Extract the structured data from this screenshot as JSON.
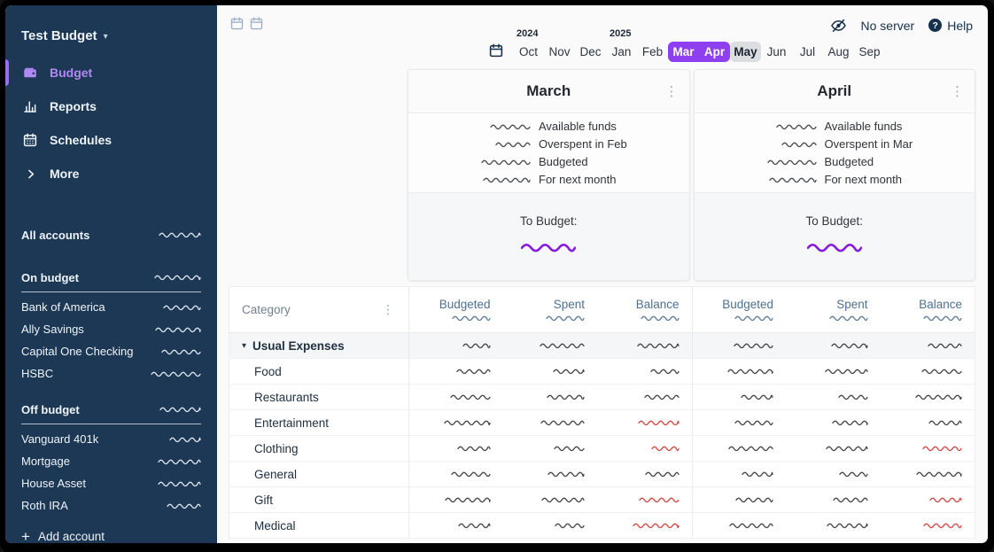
{
  "colors": {
    "sidebar_bg": "#1c3854",
    "sidebar_text": "#eef3f8",
    "main_bg": "#fafafa",
    "navy_text": "#15304c",
    "accent_purple": "#8e3ff0",
    "nav_active_purple": "#b289f4",
    "nav_indicator": "#9a6cf0",
    "to_budget_purple": "#861be0",
    "negative_red": "#d64541",
    "mask_dark": "#454545",
    "mask_light": "#dce5ee",
    "mask_slate": "#5e7b97",
    "header_slate": "#4e7092",
    "category_gray": "#70818f",
    "hover_gray": "#dcdddf",
    "group_bg": "#f4f6f7"
  },
  "sidebar": {
    "title": "Test Budget",
    "title_caret_icon": "chevron-down-icon",
    "nav": [
      {
        "label": "Budget",
        "icon": "wallet-icon",
        "active": true
      },
      {
        "label": "Reports",
        "icon": "bar-chart-icon",
        "active": false
      },
      {
        "label": "Schedules",
        "icon": "calendar-icon",
        "active": false
      },
      {
        "label": "More",
        "icon": "chevron-right-icon",
        "active": false
      }
    ],
    "all_accounts_label": "All accounts",
    "sections": [
      {
        "header": "On budget",
        "items": [
          "Bank of America",
          "Ally Savings",
          "Capital One Checking",
          "HSBC"
        ]
      },
      {
        "header": "Off budget",
        "items": [
          "Vanguard 401k",
          "Mortgage",
          "House Asset",
          "Roth IRA"
        ]
      }
    ],
    "add_account_label": "Add account",
    "values_masked": true
  },
  "topbar": {
    "privacy_icon": "eye-slash-icon",
    "server_status": "No server",
    "help_icon": "question-circle-icon",
    "help_label": "Help",
    "view_buttons": [
      "calendar-icon",
      "calendar-icon"
    ]
  },
  "month_nav": {
    "picker_icon": "calendar-icon",
    "months": [
      {
        "label": "Oct",
        "year_above": "2024",
        "state": "normal"
      },
      {
        "label": "Nov",
        "state": "normal"
      },
      {
        "label": "Dec",
        "state": "normal"
      },
      {
        "label": "Jan",
        "year_above": "2025",
        "state": "normal"
      },
      {
        "label": "Feb",
        "state": "normal"
      },
      {
        "label": "Mar",
        "state": "selected"
      },
      {
        "label": "Apr",
        "state": "selected"
      },
      {
        "label": "May",
        "state": "hover"
      },
      {
        "label": "Jun",
        "state": "normal"
      },
      {
        "label": "Jul",
        "state": "normal"
      },
      {
        "label": "Aug",
        "state": "normal"
      },
      {
        "label": "Sep",
        "state": "normal"
      }
    ]
  },
  "cards": [
    {
      "title": "March",
      "menu_icon": "kebab-icon",
      "summary_labels": [
        "Available funds",
        "Overspent in Feb",
        "Budgeted",
        "For next month"
      ],
      "to_budget_label": "To Budget:",
      "to_budget_masked": true
    },
    {
      "title": "April",
      "menu_icon": "kebab-icon",
      "summary_labels": [
        "Available funds",
        "Overspent in Mar",
        "Budgeted",
        "For next month"
      ],
      "to_budget_label": "To Budget:",
      "to_budget_masked": true
    }
  ],
  "table": {
    "category_header": "Category",
    "column_headers": [
      "Budgeted",
      "Spent",
      "Balance"
    ],
    "month_sections": [
      "March",
      "April"
    ],
    "rows": [
      {
        "label": "Usual Expenses",
        "group": true,
        "cells": [
          "dark",
          "dark",
          "dark",
          "dark",
          "dark",
          "dark"
        ]
      },
      {
        "label": "Food",
        "group": false,
        "cells": [
          "dark",
          "dark",
          "dark",
          "dark",
          "dark",
          "dark"
        ]
      },
      {
        "label": "Restaurants",
        "group": false,
        "cells": [
          "dark",
          "dark",
          "dark",
          "dark",
          "dark",
          "dark"
        ]
      },
      {
        "label": "Entertainment",
        "group": false,
        "cells": [
          "dark",
          "dark",
          "red",
          "dark",
          "dark",
          "dark"
        ]
      },
      {
        "label": "Clothing",
        "group": false,
        "cells": [
          "dark",
          "dark",
          "red",
          "dark",
          "dark",
          "red"
        ]
      },
      {
        "label": "General",
        "group": false,
        "cells": [
          "dark",
          "dark",
          "dark",
          "dark",
          "dark",
          "dark"
        ]
      },
      {
        "label": "Gift",
        "group": false,
        "cells": [
          "dark",
          "dark",
          "red",
          "dark",
          "dark",
          "red"
        ]
      },
      {
        "label": "Medical",
        "group": false,
        "cells": [
          "dark",
          "dark",
          "red",
          "dark",
          "dark",
          "red"
        ]
      }
    ]
  }
}
